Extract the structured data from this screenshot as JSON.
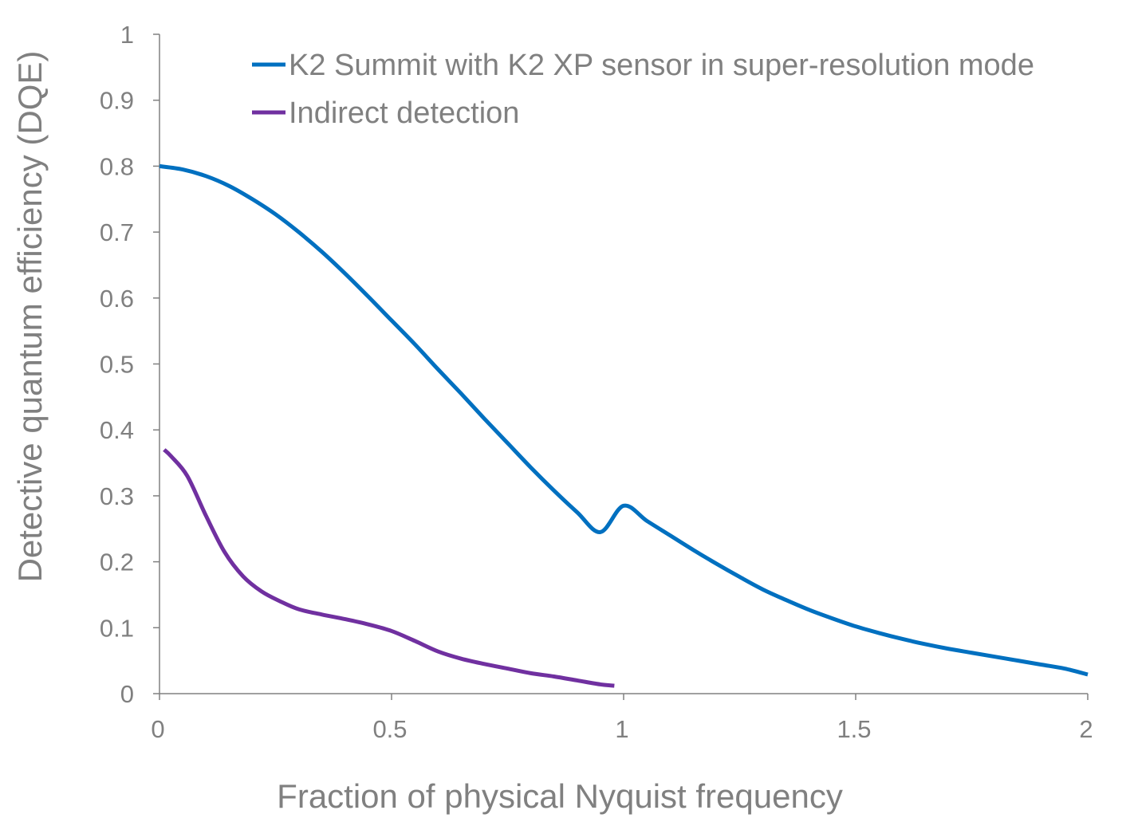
{
  "chart_data": {
    "type": "line",
    "title": "",
    "xlabel": "Fraction of physical Nyquist frequency",
    "ylabel": "Detective quantum efficiency (DQE)",
    "xlim": [
      0,
      2
    ],
    "ylim": [
      0,
      1
    ],
    "x_ticks": [
      {
        "value": 0,
        "label": "0"
      },
      {
        "value": 0.5,
        "label": "0.5"
      },
      {
        "value": 1,
        "label": "1"
      },
      {
        "value": 1.5,
        "label": "1.5"
      },
      {
        "value": 2,
        "label": "2"
      }
    ],
    "y_ticks": [
      {
        "value": 0,
        "label": "0"
      },
      {
        "value": 0.1,
        "label": "0.1"
      },
      {
        "value": 0.2,
        "label": "0.2"
      },
      {
        "value": 0.3,
        "label": "0.3"
      },
      {
        "value": 0.4,
        "label": "0.4"
      },
      {
        "value": 0.5,
        "label": "0.5"
      },
      {
        "value": 0.6,
        "label": "0.6"
      },
      {
        "value": 0.7,
        "label": "0.7"
      },
      {
        "value": 0.8,
        "label": "0.8"
      },
      {
        "value": 0.9,
        "label": "0.9"
      },
      {
        "value": 1,
        "label": "1"
      }
    ],
    "grid": false,
    "legend_position": "top-right",
    "series": [
      {
        "name": "K2 Summit with K2 XP sensor in super-resolution mode",
        "color": "#0070c0",
        "x": [
          0,
          0.05,
          0.1,
          0.15,
          0.2,
          0.25,
          0.3,
          0.35,
          0.4,
          0.45,
          0.5,
          0.55,
          0.6,
          0.65,
          0.7,
          0.75,
          0.8,
          0.85,
          0.9,
          0.95,
          1.0,
          1.05,
          1.1,
          1.15,
          1.2,
          1.25,
          1.3,
          1.35,
          1.4,
          1.45,
          1.5,
          1.55,
          1.6,
          1.65,
          1.7,
          1.75,
          1.8,
          1.85,
          1.9,
          1.95,
          2.0
        ],
        "y": [
          0.8,
          0.795,
          0.785,
          0.77,
          0.75,
          0.727,
          0.7,
          0.67,
          0.637,
          0.602,
          0.566,
          0.53,
          0.492,
          0.455,
          0.417,
          0.38,
          0.343,
          0.308,
          0.275,
          0.245,
          0.285,
          0.262,
          0.24,
          0.218,
          0.197,
          0.177,
          0.158,
          0.142,
          0.127,
          0.114,
          0.102,
          0.092,
          0.083,
          0.075,
          0.068,
          0.062,
          0.056,
          0.05,
          0.044,
          0.038,
          0.029
        ]
      },
      {
        "name": "Indirect detection",
        "color": "#7030a0",
        "x": [
          0.01,
          0.025,
          0.06,
          0.1,
          0.14,
          0.18,
          0.22,
          0.26,
          0.3,
          0.35,
          0.4,
          0.45,
          0.5,
          0.55,
          0.6,
          0.65,
          0.7,
          0.75,
          0.8,
          0.85,
          0.9,
          0.95,
          0.98
        ],
        "y": [
          0.37,
          0.36,
          0.33,
          0.27,
          0.215,
          0.178,
          0.155,
          0.14,
          0.128,
          0.12,
          0.113,
          0.105,
          0.095,
          0.08,
          0.064,
          0.053,
          0.045,
          0.038,
          0.031,
          0.026,
          0.02,
          0.014,
          0.012
        ]
      }
    ]
  }
}
